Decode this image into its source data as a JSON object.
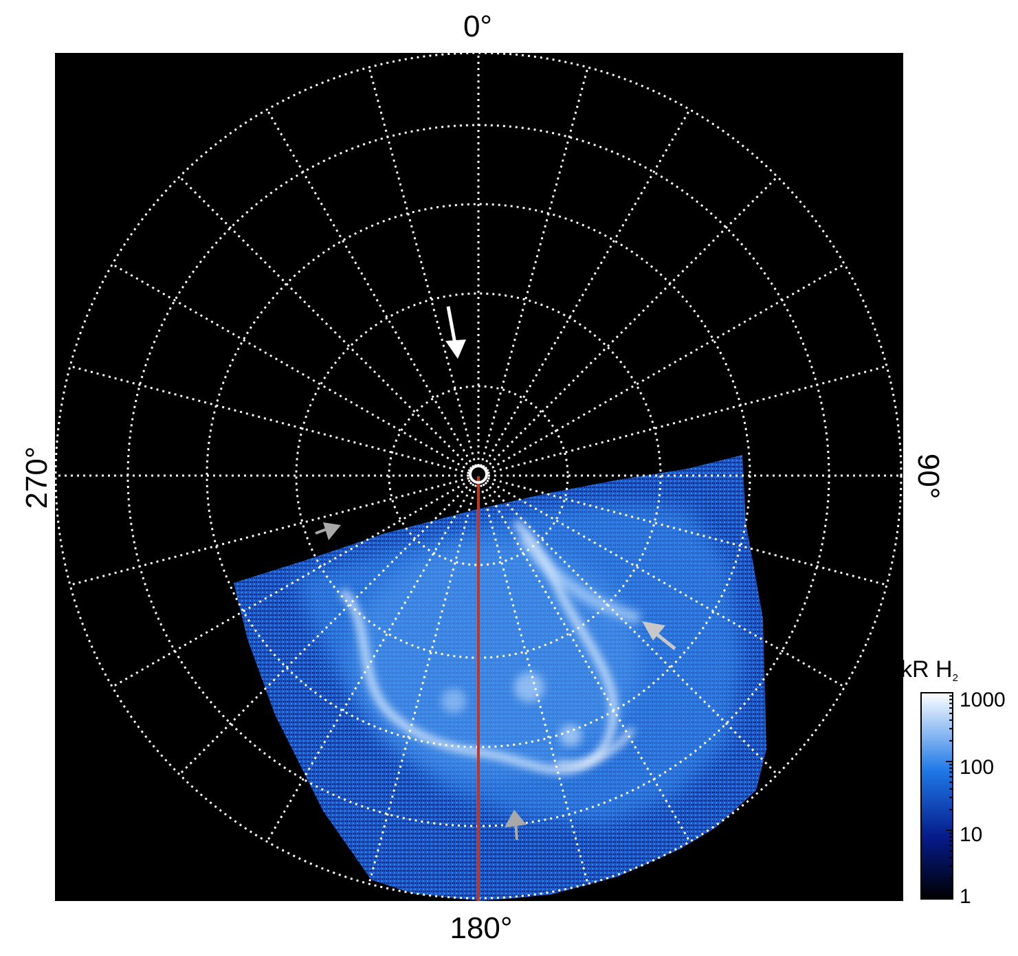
{
  "figure": {
    "labels": {
      "top": "0°",
      "bottom": "180°",
      "left": "270°",
      "right": "90°"
    },
    "colorbar": {
      "unit": "kR H",
      "subscript": "2",
      "ticks": [
        "1000",
        "100",
        "10",
        "1"
      ],
      "values": [
        1000,
        100,
        10,
        1
      ],
      "scale": "log",
      "colors": {
        "low": "#000000",
        "mid_low": "#061b8a",
        "mid": "#1e78e6",
        "high": "#ffffff"
      }
    },
    "colors": {
      "background": "#000000",
      "grid": "#ffffff",
      "meridian_line": "#c0361e",
      "arrow_white": "#ffffff",
      "arrow_gray": "#a9a9a9"
    }
  }
}
